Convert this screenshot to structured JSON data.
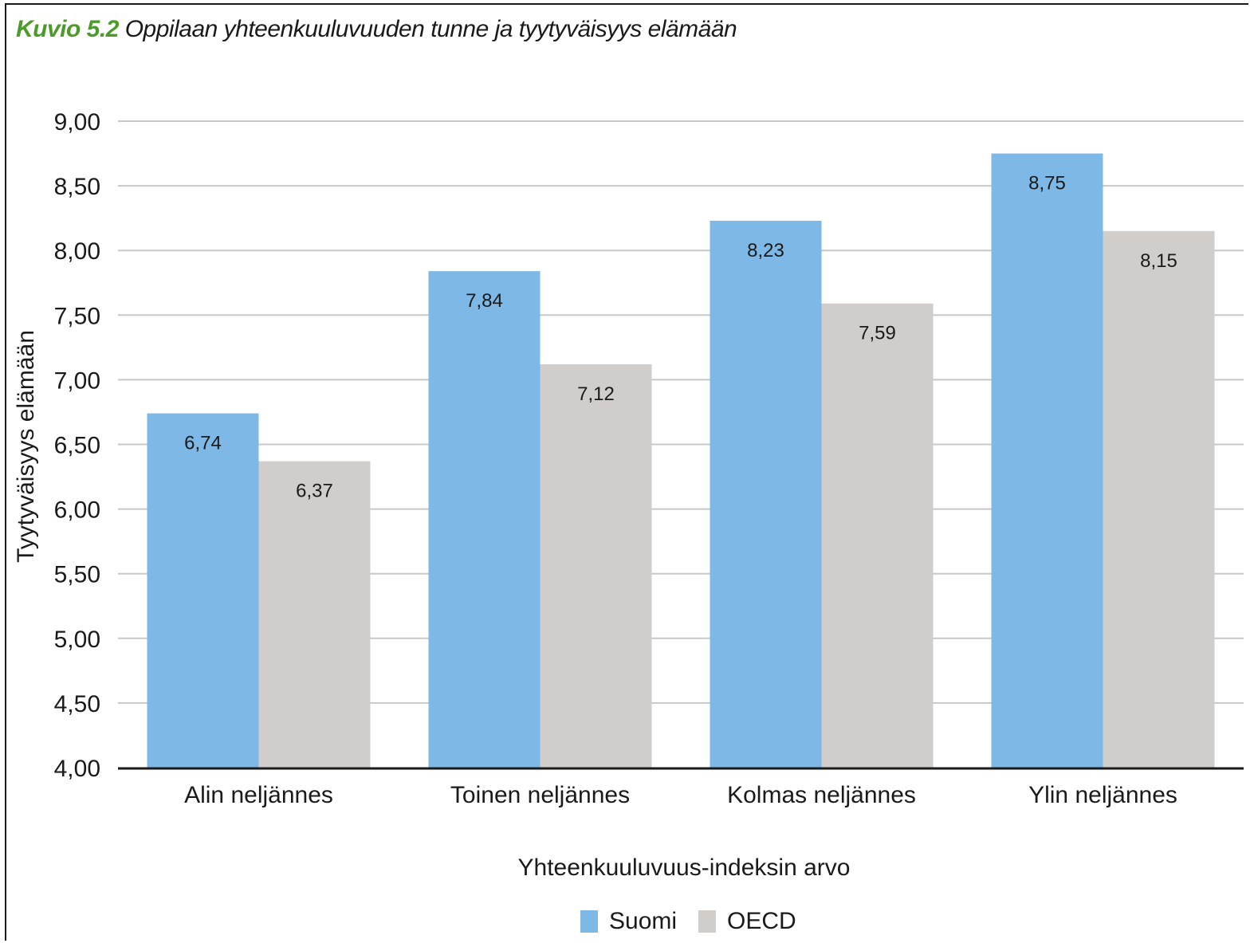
{
  "caption": {
    "label": "Kuvio 5.2",
    "text": "Oppilaan yhteenkuuluvuuden tunne ja tyytyväisyys elämään"
  },
  "colors": {
    "suomi": "#7db8e6",
    "oecd": "#d0cdcb",
    "grid": "#c8c8c8",
    "axis": "#1a1a1a",
    "caption_label": "#4c9a2a"
  },
  "chart_data": {
    "type": "bar",
    "title": "Oppilaan yhteenkuuluvuuden tunne ja tyytyväisyys elämään",
    "xlabel": "Yhteenkuuluvuus-indeksin arvo",
    "ylabel": "Tyytyväisyys elämään",
    "categories": [
      "Alin neljännes",
      "Toinen neljännes",
      "Kolmas neljännes",
      "Ylin neljännes"
    ],
    "series": [
      {
        "name": "Suomi",
        "values": [
          6.74,
          7.84,
          8.23,
          8.75
        ],
        "labels": [
          "6,74",
          "7,84",
          "8,23",
          "8,75"
        ]
      },
      {
        "name": "OECD",
        "values": [
          6.37,
          7.12,
          7.59,
          8.15
        ],
        "labels": [
          "6,37",
          "7,12",
          "7,59",
          "8,15"
        ]
      }
    ],
    "ylim": [
      4.0,
      9.0
    ],
    "yticks": [
      4.0,
      4.5,
      5.0,
      5.5,
      6.0,
      6.5,
      7.0,
      7.5,
      8.0,
      8.5,
      9.0
    ],
    "ytick_labels": [
      "4,00",
      "4,50",
      "5,00",
      "5,50",
      "6,00",
      "6,50",
      "7,00",
      "7,50",
      "8,00",
      "8,50",
      "9,00"
    ],
    "grid": true,
    "legend": "bottom-center"
  }
}
